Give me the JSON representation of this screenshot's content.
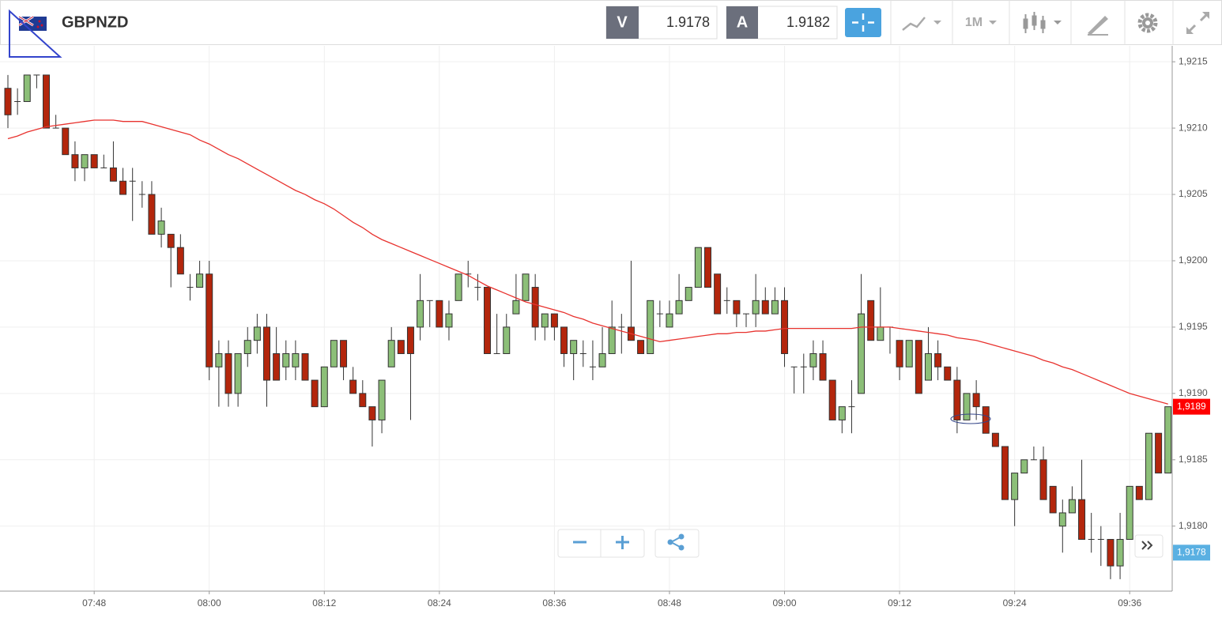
{
  "toolbar": {
    "symbol": "GBPNZD",
    "sell_label": "V",
    "sell": "1.9178",
    "buy_label": "A",
    "buy": "1.9182",
    "timeframe": "1M"
  },
  "chart_data": {
    "type": "candlestick",
    "categories": [
      null,
      null,
      null,
      null,
      null,
      null,
      null,
      null,
      null,
      "07:48",
      null,
      null,
      null,
      null,
      null,
      null,
      null,
      null,
      null,
      null,
      null,
      "08:00",
      null,
      null,
      null,
      null,
      null,
      null,
      null,
      null,
      null,
      null,
      null,
      "08:12",
      null,
      null,
      null,
      null,
      null,
      null,
      null,
      null,
      null,
      null,
      null,
      "08:24",
      null,
      null,
      null,
      null,
      null,
      null,
      null,
      null,
      null,
      null,
      null,
      "08:36",
      null,
      null,
      null,
      null,
      null,
      null,
      null,
      null,
      null,
      null,
      null,
      "08:48",
      null,
      null,
      null,
      null,
      null,
      null,
      null,
      null,
      null,
      null,
      null,
      "09:00",
      null,
      null,
      null,
      null,
      null,
      null,
      null,
      null,
      null,
      null,
      null,
      "09:12",
      null,
      null,
      null,
      null,
      null,
      null,
      null,
      null,
      null,
      null,
      null,
      "09:24",
      null,
      null,
      null,
      null,
      null,
      null,
      null,
      null,
      null,
      null,
      null,
      "09:36",
      null,
      null,
      null,
      null
    ],
    "open": [
      1.9213,
      1.9212,
      1.9212,
      1.9214,
      1.9214,
      1.921,
      1.921,
      1.9208,
      1.9207,
      1.9208,
      1.9207,
      1.9207,
      1.9206,
      1.9206,
      1.9205,
      1.9205,
      1.9202,
      1.9202,
      1.9201,
      1.9198,
      1.9198,
      1.9199,
      1.9192,
      1.9193,
      1.919,
      1.9193,
      1.9194,
      1.9195,
      1.9193,
      1.9192,
      1.9192,
      1.9193,
      1.9191,
      1.9189,
      1.9192,
      1.9194,
      1.9191,
      1.919,
      1.9189,
      1.9188,
      1.9192,
      1.9194,
      1.9195,
      1.9195,
      1.9197,
      1.9197,
      1.9195,
      1.9197,
      1.9199,
      1.9198,
      1.9198,
      1.9193,
      1.9193,
      1.9196,
      1.9197,
      1.9198,
      1.9195,
      1.9196,
      1.9195,
      1.9193,
      1.9193,
      1.9192,
      1.9192,
      1.9193,
      1.9195,
      1.9195,
      1.9194,
      1.9193,
      1.9196,
      1.9195,
      1.9196,
      1.9197,
      1.9198,
      1.9201,
      1.9199,
      1.9197,
      1.9197,
      1.9196,
      1.9196,
      1.9197,
      1.9196,
      1.9197,
      1.9192,
      1.9192,
      1.9192,
      1.9193,
      1.9191,
      1.9188,
      1.9189,
      1.919,
      1.9197,
      1.9194,
      1.9195,
      1.9194,
      1.9192,
      1.9194,
      1.9191,
      1.9193,
      1.9192,
      1.9191,
      1.9188,
      1.919,
      1.9189,
      1.9187,
      1.9186,
      1.9182,
      1.9184,
      1.9185,
      1.9185,
      1.9183,
      1.918,
      1.9181,
      1.9182,
      1.9179,
      1.9179,
      1.9179,
      1.9177,
      1.9179,
      1.9183,
      1.9182,
      1.9187,
      1.9184
    ],
    "high": [
      1.9214,
      1.9213,
      1.9214,
      1.9214,
      1.9214,
      1.9211,
      1.921,
      1.9209,
      1.9208,
      1.9208,
      1.9208,
      1.9209,
      1.9207,
      1.9207,
      1.9206,
      1.9206,
      1.9204,
      1.9202,
      1.9202,
      1.9199,
      1.92,
      1.92,
      1.9194,
      1.9194,
      1.9193,
      1.9195,
      1.9196,
      1.9196,
      1.9195,
      1.9194,
      1.9194,
      1.9193,
      1.9191,
      1.9192,
      1.9194,
      1.9194,
      1.9192,
      1.9191,
      1.9189,
      1.9191,
      1.9195,
      1.9194,
      1.9195,
      1.9199,
      1.9197,
      1.9197,
      1.9197,
      1.9199,
      1.92,
      1.9199,
      1.9198,
      1.9196,
      1.9196,
      1.9199,
      1.9199,
      1.9199,
      1.9196,
      1.9196,
      1.9195,
      1.9194,
      1.9194,
      1.9194,
      1.9195,
      1.9197,
      1.9196,
      1.92,
      1.9194,
      1.9197,
      1.9197,
      1.9197,
      1.9199,
      1.9198,
      1.9201,
      1.9201,
      1.9199,
      1.9198,
      1.9197,
      1.9196,
      1.9199,
      1.9198,
      1.9198,
      1.9198,
      1.9192,
      1.9193,
      1.9194,
      1.9194,
      1.9191,
      1.9189,
      1.9191,
      1.9199,
      1.9197,
      1.9198,
      1.9195,
      1.9194,
      1.9194,
      1.9194,
      1.9195,
      1.9194,
      1.9192,
      1.9192,
      1.919,
      1.9191,
      1.9189,
      1.9187,
      1.9186,
      1.9184,
      1.9185,
      1.9186,
      1.9186,
      1.9183,
      1.9182,
      1.9183,
      1.9185,
      1.9181,
      1.918,
      1.9179,
      1.9181,
      1.9183,
      1.9183,
      1.9187,
      1.9187,
      1.9189
    ],
    "low": [
      1.921,
      1.9211,
      1.9212,
      1.9213,
      1.921,
      1.921,
      1.9208,
      1.9206,
      1.9206,
      1.9207,
      1.9207,
      1.9206,
      1.9205,
      1.9203,
      1.9204,
      1.9202,
      1.9201,
      1.9198,
      1.9199,
      1.9197,
      1.9198,
      1.9191,
      1.9189,
      1.9189,
      1.9189,
      1.9192,
      1.9193,
      1.9189,
      1.9191,
      1.9191,
      1.9191,
      1.9191,
      1.9189,
      1.9189,
      1.9192,
      1.9191,
      1.919,
      1.9189,
      1.9186,
      1.9187,
      1.9192,
      1.9193,
      1.9188,
      1.9194,
      1.9195,
      1.9195,
      1.9194,
      1.9197,
      1.9198,
      1.9197,
      1.9193,
      1.9193,
      1.9193,
      1.9196,
      1.9197,
      1.9194,
      1.9194,
      1.9194,
      1.9192,
      1.9191,
      1.9192,
      1.9191,
      1.9192,
      1.9193,
      1.9193,
      1.9194,
      1.9193,
      1.9193,
      1.9195,
      1.9195,
      1.9196,
      1.9197,
      1.9198,
      1.9198,
      1.9196,
      1.9196,
      1.9195,
      1.9195,
      1.9195,
      1.9196,
      1.9196,
      1.9192,
      1.919,
      1.919,
      1.9191,
      1.9191,
      1.9188,
      1.9187,
      1.9187,
      1.919,
      1.9194,
      1.9194,
      1.9193,
      1.9191,
      1.9192,
      1.919,
      1.9191,
      1.9191,
      1.9191,
      1.9187,
      1.9188,
      1.9188,
      1.9187,
      1.9186,
      1.9182,
      1.918,
      1.9184,
      1.9185,
      1.9182,
      1.9181,
      1.9178,
      1.9181,
      1.9179,
      1.9178,
      1.9177,
      1.9176,
      1.9176,
      1.9179,
      1.9182,
      1.9182,
      1.9184,
      1.9184
    ],
    "close": [
      1.9211,
      1.9212,
      1.9214,
      1.9214,
      1.921,
      1.921,
      1.9208,
      1.9207,
      1.9208,
      1.9207,
      1.9207,
      1.9206,
      1.9205,
      1.9206,
      1.9205,
      1.9202,
      1.9203,
      1.9201,
      1.9199,
      1.9198,
      1.9199,
      1.9192,
      1.9193,
      1.919,
      1.9193,
      1.9194,
      1.9195,
      1.9191,
      1.9191,
      1.9193,
      1.9193,
      1.9191,
      1.9189,
      1.9192,
      1.9194,
      1.9192,
      1.919,
      1.9189,
      1.9188,
      1.9191,
      1.9194,
      1.9193,
      1.9193,
      1.9197,
      1.9197,
      1.9195,
      1.9196,
      1.9199,
      1.9199,
      1.9198,
      1.9193,
      1.9193,
      1.9195,
      1.9197,
      1.9199,
      1.9195,
      1.9196,
      1.9195,
      1.9193,
      1.9194,
      1.9193,
      1.9192,
      1.9193,
      1.9195,
      1.9195,
      1.9194,
      1.9193,
      1.9197,
      1.9196,
      1.9196,
      1.9197,
      1.9198,
      1.9201,
      1.9198,
      1.9196,
      1.9197,
      1.9196,
      1.9196,
      1.9197,
      1.9196,
      1.9197,
      1.9193,
      1.9192,
      1.9192,
      1.9193,
      1.9191,
      1.9188,
      1.9189,
      1.9189,
      1.9196,
      1.9194,
      1.9195,
      1.9195,
      1.9192,
      1.9194,
      1.919,
      1.9193,
      1.9192,
      1.9191,
      1.9188,
      1.919,
      1.9189,
      1.9187,
      1.9186,
      1.9182,
      1.9184,
      1.9185,
      1.9185,
      1.9182,
      1.9181,
      1.9181,
      1.9182,
      1.9179,
      1.9179,
      1.9179,
      1.9177,
      1.9179,
      1.9183,
      1.9182,
      1.9187,
      1.9184,
      1.9189
    ],
    "up_color": "#8cbf78",
    "down_color": "#b3260c",
    "moving_average": {
      "color": "#e8322e",
      "values": [
        1.92092,
        1.92094,
        1.92097,
        1.92099,
        1.92101,
        1.92102,
        1.92103,
        1.92104,
        1.92105,
        1.92106,
        1.92106,
        1.92106,
        1.92105,
        1.92105,
        1.92105,
        1.92103,
        1.92101,
        1.92099,
        1.92097,
        1.92095,
        1.92091,
        1.92088,
        1.92084,
        1.9208,
        1.92077,
        1.92073,
        1.92069,
        1.92065,
        1.92061,
        1.92057,
        1.92053,
        1.9205,
        1.92046,
        1.92043,
        1.92039,
        1.92034,
        1.92029,
        1.92025,
        1.9202,
        1.92016,
        1.92013,
        1.9201,
        1.92007,
        1.92004,
        1.92001,
        1.91998,
        1.91995,
        1.91992,
        1.91989,
        1.91985,
        1.91981,
        1.91978,
        1.91975,
        1.91972,
        1.91969,
        1.91967,
        1.91965,
        1.91963,
        1.91961,
        1.91958,
        1.91956,
        1.91953,
        1.91951,
        1.91949,
        1.91947,
        1.91945,
        1.91943,
        1.91941,
        1.91939,
        1.9194,
        1.91941,
        1.91942,
        1.91943,
        1.91944,
        1.91945,
        1.91945,
        1.91946,
        1.91946,
        1.91947,
        1.91947,
        1.91948,
        1.91949,
        1.91949,
        1.91949,
        1.91949,
        1.91949,
        1.91949,
        1.91949,
        1.91949,
        1.9195,
        1.9195,
        1.9195,
        1.9195,
        1.91949,
        1.91948,
        1.91947,
        1.91946,
        1.91945,
        1.91944,
        1.91942,
        1.91941,
        1.9194,
        1.91938,
        1.91936,
        1.91934,
        1.91932,
        1.9193,
        1.91928,
        1.91925,
        1.91923,
        1.9192,
        1.91918,
        1.91915,
        1.91912,
        1.91909,
        1.91906,
        1.91903,
        1.919,
        1.91898,
        1.91896,
        1.91894,
        1.91892
      ]
    },
    "ylim": [
      1.91751,
      1.92162
    ],
    "yticks": [
      {
        "value": 1.918,
        "label": "1,9180"
      },
      {
        "value": 1.9185,
        "label": "1,9185"
      },
      {
        "value": 1.919,
        "label": "1,9190"
      },
      {
        "value": 1.9195,
        "label": "1,9195"
      },
      {
        "value": 1.92,
        "label": "1,9200"
      },
      {
        "value": 1.9205,
        "label": "1,9205"
      },
      {
        "value": 1.921,
        "label": "1,9210"
      },
      {
        "value": 1.9215,
        "label": "1,9215"
      }
    ],
    "grid": true,
    "last_price": {
      "value": 1.9189,
      "label": "1,9189",
      "color": "#ff0000"
    },
    "bid_price": {
      "value": 1.9178,
      "label": "1,9178",
      "color": "#5ab0e2"
    }
  }
}
